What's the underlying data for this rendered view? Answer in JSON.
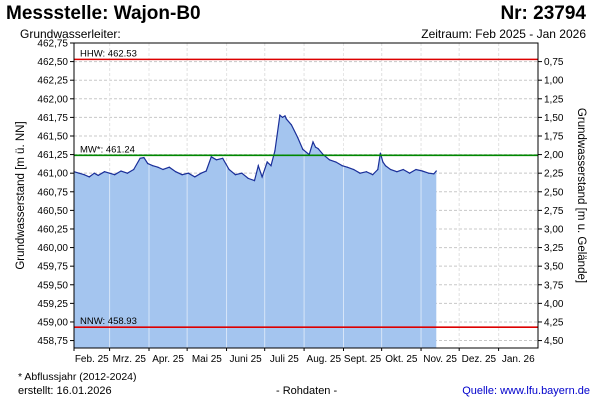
{
  "header": {
    "title": "Messstelle: Wajon-B0",
    "nr": "Nr: 23794",
    "aquifer": "Grundwasserleiter:",
    "period": "Zeitraum: Feb 2025 - Jan 2026"
  },
  "footer": {
    "note": "* Abflussjahr (2012-2024)",
    "created_label": "erstellt:",
    "created_date": "16.01.2026",
    "status": "- Rohdaten -",
    "source_label": "Quelle:",
    "source_url": "www.lfu.bayern.de"
  },
  "colors": {
    "fill": "#a4c5ef",
    "line": "#1a2f99",
    "hhw": "#dd0000",
    "nnw": "#dd0000",
    "mw": "#008800",
    "grid": "#c8c8c8"
  },
  "chart_data": {
    "type": "area",
    "ylabel_left": "Grundwasserstand [m ü. NN]",
    "ylabel_right": "Grundwasserstand [m u. Gelände]",
    "ylim": [
      458.65,
      462.75
    ],
    "yticks_left": [
      "462,75",
      "462,50",
      "462,25",
      "462,00",
      "461,75",
      "461,50",
      "461,25",
      "461,00",
      "460,75",
      "460,50",
      "460,25",
      "460,00",
      "459,75",
      "459,50",
      "459,25",
      "459,00",
      "458,75"
    ],
    "yticks_left_values": [
      462.75,
      462.5,
      462.25,
      462.0,
      461.75,
      461.5,
      461.25,
      461.0,
      460.75,
      460.5,
      460.25,
      460.0,
      459.75,
      459.5,
      459.25,
      459.0,
      458.75
    ],
    "yticks_right": [
      "0,75",
      "1,00",
      "1,25",
      "1,50",
      "1,75",
      "2,00",
      "2,25",
      "2,50",
      "2,75",
      "3,00",
      "3,25",
      "3,50",
      "3,75",
      "4,00",
      "4,25",
      "4,50"
    ],
    "yticks_right_values": [
      462.5,
      462.25,
      462.0,
      461.75,
      461.5,
      461.25,
      461.0,
      460.75,
      460.5,
      460.25,
      460.0,
      459.75,
      459.5,
      459.25,
      459.0,
      458.75
    ],
    "xticks": [
      "Feb. 25",
      "Mrz. 25",
      "Apr. 25",
      "Mai 25",
      "Juni 25",
      "Juli 25",
      "Aug. 25",
      "Sept. 25",
      "Okt. 25",
      "Nov. 25",
      "Dez. 25",
      "Jan. 26"
    ],
    "xlim": [
      "2025-02-01",
      "2026-01-31"
    ],
    "reference_lines": [
      {
        "label": "HHW: 462.53",
        "value": 462.53
      },
      {
        "label": "MW*: 461.24",
        "value": 461.24
      },
      {
        "label": "NNW: 458.93",
        "value": 458.93
      }
    ],
    "grid": true,
    "series": [
      {
        "x": [
          "2025-02-01",
          "2025-02-05",
          "2025-02-09",
          "2025-02-13",
          "2025-02-17",
          "2025-02-20",
          "2025-02-25",
          "2025-03-01",
          "2025-03-05",
          "2025-03-10",
          "2025-03-15",
          "2025-03-20",
          "2025-03-25",
          "2025-03-28",
          "2025-03-31",
          "2025-04-04",
          "2025-04-08",
          "2025-04-12",
          "2025-04-17",
          "2025-04-22",
          "2025-04-27",
          "2025-05-02",
          "2025-05-07",
          "2025-05-12",
          "2025-05-16",
          "2025-05-20",
          "2025-05-24",
          "2025-05-29",
          "2025-06-03",
          "2025-06-08",
          "2025-06-13",
          "2025-06-18",
          "2025-06-23",
          "2025-06-26",
          "2025-06-29",
          "2025-07-03",
          "2025-07-06",
          "2025-07-09",
          "2025-07-13",
          "2025-07-15",
          "2025-07-17",
          "2025-07-18",
          "2025-07-22",
          "2025-07-27",
          "2025-07-31",
          "2025-08-05",
          "2025-08-08",
          "2025-08-10",
          "2025-08-12",
          "2025-08-16",
          "2025-08-21",
          "2025-08-26",
          "2025-08-31",
          "2025-09-04",
          "2025-09-09",
          "2025-09-14",
          "2025-09-19",
          "2025-09-24",
          "2025-09-28",
          "2025-09-30",
          "2025-10-02",
          "2025-10-04",
          "2025-10-08",
          "2025-10-13",
          "2025-10-18",
          "2025-10-23",
          "2025-10-28",
          "2025-11-02",
          "2025-11-07",
          "2025-11-11",
          "2025-11-13"
        ],
        "y": [
          461.02,
          461.0,
          460.98,
          460.95,
          461.0,
          460.97,
          461.02,
          461.0,
          460.98,
          461.03,
          461.0,
          461.05,
          461.2,
          461.21,
          461.13,
          461.1,
          461.08,
          461.05,
          461.08,
          461.02,
          460.98,
          461.0,
          460.95,
          461.0,
          461.03,
          461.22,
          461.18,
          461.2,
          461.05,
          460.98,
          461.0,
          460.93,
          460.9,
          461.1,
          460.95,
          461.15,
          461.1,
          461.3,
          461.78,
          461.75,
          461.77,
          461.73,
          461.65,
          461.48,
          461.32,
          461.25,
          461.42,
          461.35,
          461.33,
          461.25,
          461.18,
          461.15,
          461.1,
          461.08,
          461.05,
          461.0,
          461.02,
          460.98,
          461.05,
          461.27,
          461.15,
          461.1,
          461.05,
          461.02,
          461.05,
          461.0,
          461.05,
          461.03,
          461.0,
          460.99,
          461.03
        ]
      }
    ]
  }
}
